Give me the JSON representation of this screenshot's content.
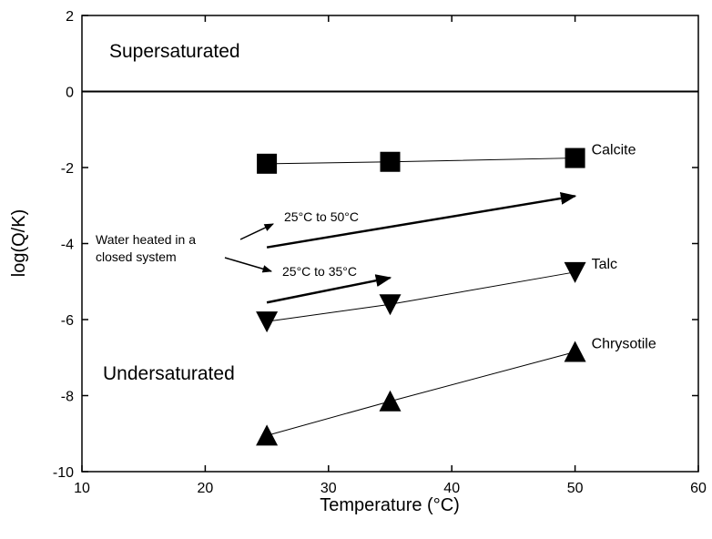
{
  "chart_data": {
    "type": "scatter",
    "xlabel": "Temperature (°C)",
    "ylabel": "log(Q/K)",
    "xlim": [
      10,
      60
    ],
    "ylim": [
      -10,
      2
    ],
    "xticks": [
      10,
      20,
      30,
      40,
      50,
      60
    ],
    "yticks": [
      -10,
      -8,
      -6,
      -4,
      -2,
      0,
      2
    ],
    "grid": false,
    "reference_line_y": 0,
    "series": [
      {
        "name": "Calcite",
        "marker": "square",
        "x": [
          25,
          35,
          50
        ],
        "y": [
          -1.9,
          -1.85,
          -1.75
        ]
      },
      {
        "name": "Talc",
        "marker": "triangle-down",
        "x": [
          25,
          35,
          50
        ],
        "y": [
          -6.05,
          -5.6,
          -4.75
        ]
      },
      {
        "name": "Chrysotile",
        "marker": "triangle-up",
        "x": [
          25,
          35,
          50
        ],
        "y": [
          -9.05,
          -8.15,
          -6.85
        ]
      }
    ],
    "region_labels": {
      "above": "Supersaturated",
      "below": "Undersaturated"
    },
    "annotations": {
      "water": [
        "Water heated in a",
        "closed system"
      ],
      "arrow_50": {
        "label": "25°C to 50°C",
        "from": [
          25,
          -4.1
        ],
        "to": [
          50,
          -2.75
        ]
      },
      "arrow_35": {
        "label": "25°C to 35°C",
        "from": [
          25,
          -5.55
        ],
        "to": [
          35,
          -4.9
        ]
      }
    }
  }
}
